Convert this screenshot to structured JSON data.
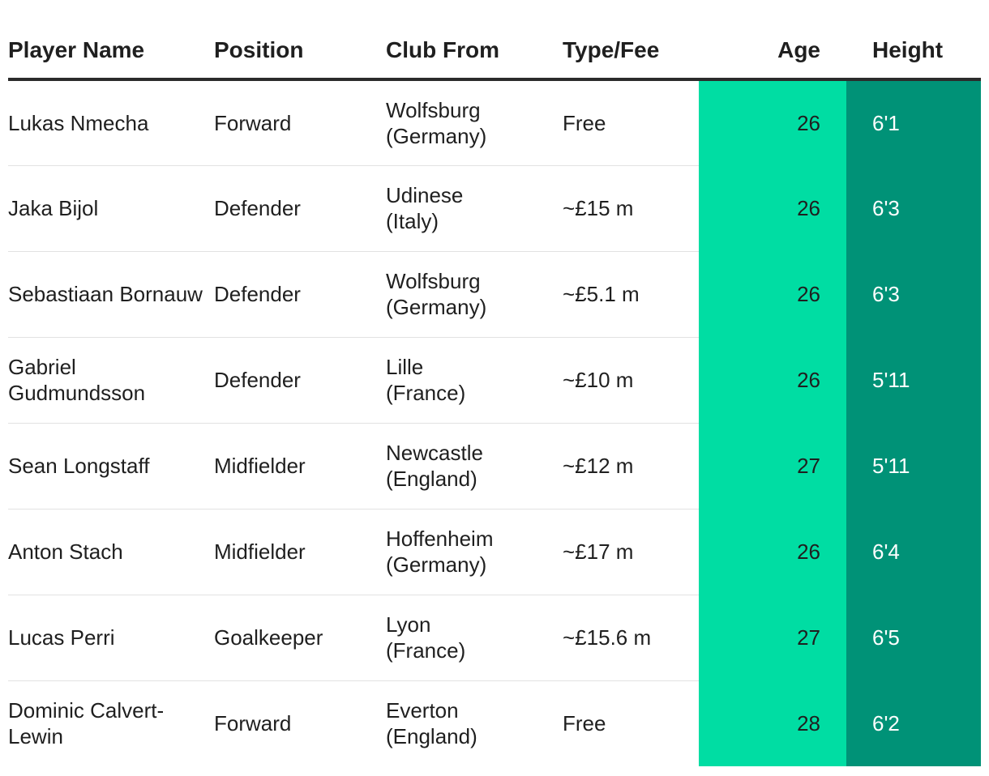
{
  "table": {
    "headers": {
      "name": "Player Name",
      "position": "Position",
      "club": "Club From",
      "fee": "Type/Fee",
      "age": "Age",
      "height": "Height"
    },
    "rows": [
      {
        "name": "Lukas Nmecha",
        "position": "Forward",
        "club": "Wolfsburg",
        "country": "(Germany)",
        "fee": "Free",
        "age": "26",
        "height": "6'1"
      },
      {
        "name": "Jaka Bijol",
        "position": "Defender",
        "club": "Udinese",
        "country": "(Italy)",
        "fee": "~£15 m",
        "age": "26",
        "height": "6'3"
      },
      {
        "name": "Sebastiaan Bornauw",
        "position": "Defender",
        "club": "Wolfsburg",
        "country": "(Germany)",
        "fee": "~£5.1 m",
        "age": "26",
        "height": "6'3"
      },
      {
        "name": "Gabriel Gudmundsson",
        "position": "Defender",
        "club": "Lille",
        "country": "(France)",
        "fee": "~£10 m",
        "age": "26",
        "height": "5'11"
      },
      {
        "name": "Sean Longstaff",
        "position": "Midfielder",
        "club": "Newcastle",
        "country": "(England)",
        "fee": "~£12 m",
        "age": "27",
        "height": "5'11"
      },
      {
        "name": "Anton Stach",
        "position": "Midfielder",
        "club": "Hoffenheim",
        "country": "(Germany)",
        "fee": "~£17 m",
        "age": "26",
        "height": "6'4"
      },
      {
        "name": "Lucas Perri",
        "position": "Goalkeeper",
        "club": "Lyon",
        "country": "(France)",
        "fee": "~£15.6 m",
        "age": "27",
        "height": "6'5"
      },
      {
        "name": "Dominic Calvert-Lewin",
        "position": "Forward",
        "club": "Everton",
        "country": "(England)",
        "fee": "Free",
        "age": "28",
        "height": "6'2"
      }
    ]
  },
  "colors": {
    "age_column": "#00dda3",
    "height_column": "#009277",
    "header_rule": "#2b2b2b",
    "row_divider": "#e2e2e2"
  }
}
